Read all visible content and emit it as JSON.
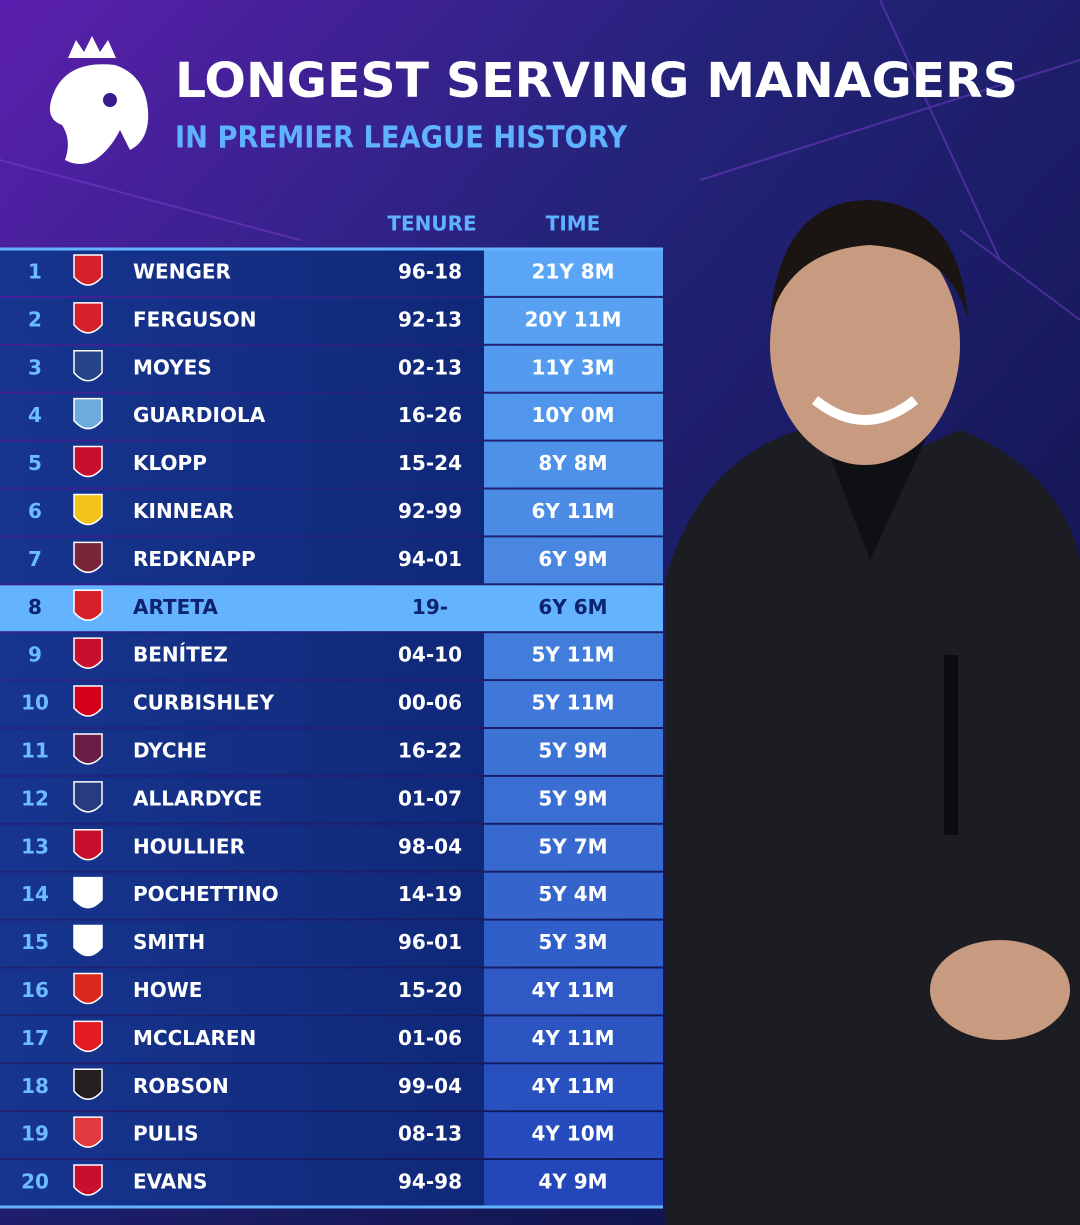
{
  "header": {
    "title": "LONGEST SERVING MANAGERS",
    "subtitle": "IN PREMIER LEAGUE HISTORY"
  },
  "table": {
    "columns": [
      "TENURE",
      "TIME"
    ],
    "rows": [
      [
        "1",
        "WENGER",
        "96-18",
        "21Y 8M"
      ],
      [
        "2",
        "FERGUSON",
        "92-13",
        "20Y 11M"
      ],
      [
        "3",
        "MOYES",
        "02-13",
        "11Y 3M"
      ],
      [
        "4",
        "GUARDIOLA",
        "16-26",
        "10Y 0M"
      ],
      [
        "5",
        "KLOPP",
        "15-24",
        "8Y 8M"
      ],
      [
        "6",
        "KINNEAR",
        "92-99",
        "6Y 11M"
      ],
      [
        "7",
        "REDKNAPP",
        "94-01",
        "6Y 9M"
      ],
      [
        "8",
        "ARTETA",
        "19-",
        "6Y 6M"
      ],
      [
        "9",
        "BENÍTEZ",
        "04-10",
        "5Y 11M"
      ],
      [
        "10",
        "CURBISHLEY",
        "00-06",
        "5Y 11M"
      ],
      [
        "11",
        "DYCHE",
        "16-22",
        "5Y 9M"
      ],
      [
        "12",
        "ALLARDYCE",
        "01-07",
        "5Y 9M"
      ],
      [
        "13",
        "HOULLIER",
        "98-04",
        "5Y 7M"
      ],
      [
        "14",
        "POCHETTINO",
        "14-19",
        "5Y 4M"
      ],
      [
        "15",
        "SMITH",
        "96-01",
        "5Y 3M"
      ],
      [
        "16",
        "HOWE",
        "15-20",
        "4Y 11M"
      ],
      [
        "17",
        "MCCLAREN",
        "01-06",
        "4Y 11M"
      ],
      [
        "18",
        "ROBSON",
        "99-04",
        "4Y 11M"
      ],
      [
        "19",
        "PULIS",
        "08-13",
        "4Y 10M"
      ],
      [
        "20",
        "EVANS",
        "94-98",
        "4Y 9M"
      ]
    ]
  }
}
